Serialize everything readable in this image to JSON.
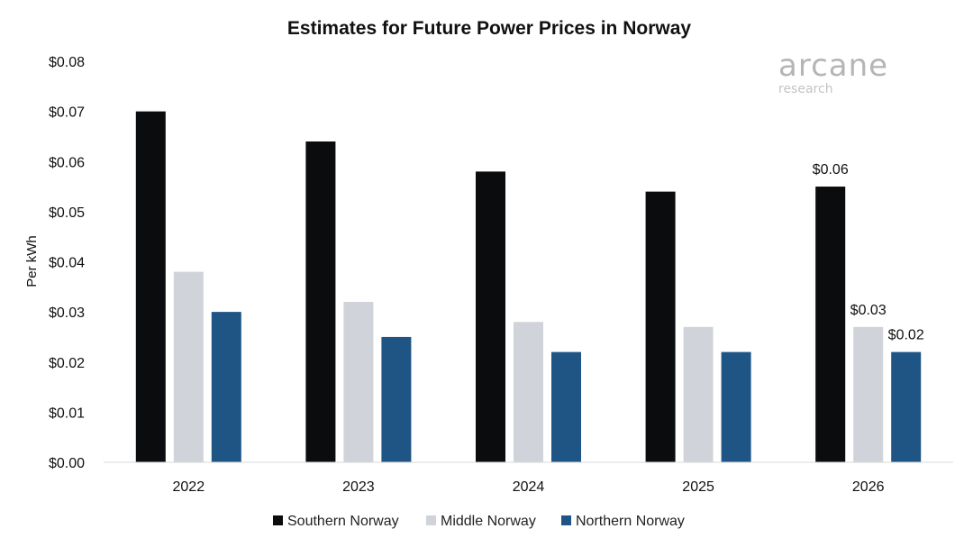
{
  "logo": {
    "name": "arcane",
    "sub": "research"
  },
  "chart_data": {
    "type": "bar",
    "title": "Estimates for Future Power Prices in Norway",
    "ylabel": "Per kWh",
    "xlabel": "",
    "ylim": [
      0,
      0.08
    ],
    "yticks": [
      "$0.00",
      "$0.01",
      "$0.02",
      "$0.03",
      "$0.04",
      "$0.05",
      "$0.06",
      "$0.07",
      "$0.08"
    ],
    "categories": [
      "2022",
      "2023",
      "2024",
      "2025",
      "2026"
    ],
    "series": [
      {
        "name": "Southern Norway",
        "color": "#0b0c0d",
        "values": [
          0.07,
          0.064,
          0.058,
          0.054,
          0.055
        ]
      },
      {
        "name": "Middle Norway",
        "color": "#d0d4da",
        "values": [
          0.038,
          0.032,
          0.028,
          0.027,
          0.027
        ]
      },
      {
        "name": "Northern Norway",
        "color": "#1f5584",
        "values": [
          0.03,
          0.025,
          0.022,
          0.022,
          0.022
        ]
      }
    ],
    "data_labels": [
      {
        "series": 0,
        "category": 4,
        "text": "$0.06"
      },
      {
        "series": 1,
        "category": 4,
        "text": "$0.03"
      },
      {
        "series": 2,
        "category": 4,
        "text": "$0.02"
      }
    ],
    "grid": false,
    "legend": "bottom"
  }
}
